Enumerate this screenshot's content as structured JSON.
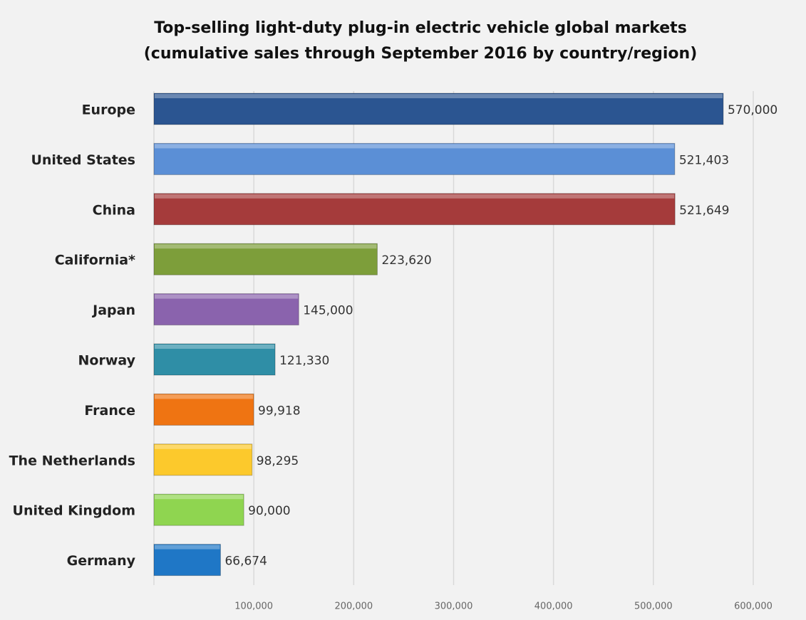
{
  "chart_data": {
    "type": "barh",
    "title": [
      "Top-selling light-duty plug-in electric vehicle global markets",
      "(cumulative sales through September 2016 by country/region)"
    ],
    "categories": [
      "Europe",
      "United States",
      "China",
      "California*",
      "Japan",
      "Norway",
      "France",
      "The Netherlands",
      "United Kingdom",
      "Germany"
    ],
    "values": [
      570000,
      521403,
      521649,
      223620,
      145000,
      121330,
      99918,
      98295,
      90000,
      66674
    ],
    "value_labels": [
      "570,000",
      "521,403",
      "521,649",
      "223,620",
      "145,000",
      "121,330",
      "99,918",
      "98,295",
      "90,000",
      "66,674"
    ],
    "colors": [
      "#2b5591",
      "#5b8fd6",
      "#a53b3b",
      "#7d9e3a",
      "#8a63ad",
      "#2f8ea6",
      "#ef7412",
      "#fcc92c",
      "#8fd550",
      "#1f77c6"
    ],
    "xlim": [
      0,
      600000
    ],
    "xticks": [
      {
        "value": 100000,
        "label": "100,000"
      },
      {
        "value": 200000,
        "label": "200,000"
      },
      {
        "value": 300000,
        "label": "300,000"
      },
      {
        "value": 400000,
        "label": "400,000"
      },
      {
        "value": 500000,
        "label": "500,000"
      },
      {
        "value": 600000,
        "label": "600,000"
      }
    ],
    "grid": true
  }
}
